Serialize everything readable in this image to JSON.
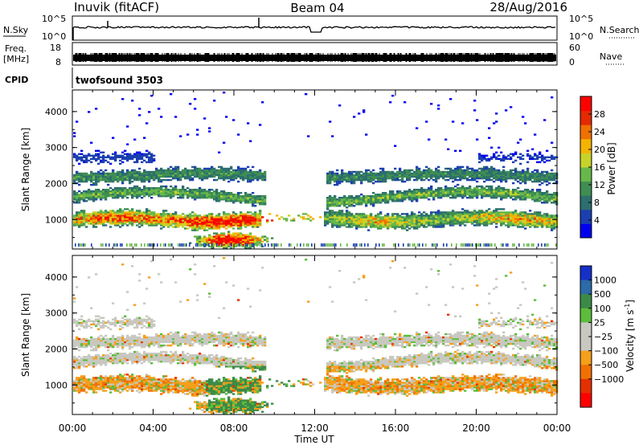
{
  "header": {
    "station": "Inuvik (fitACF)",
    "beam": "Beam 04",
    "date": "28/Aug/2016"
  },
  "status_panels": {
    "nsky": {
      "label": "N.Sky",
      "ticks": [
        "10^5",
        "10^0"
      ]
    },
    "nsearch": {
      "label": "N.Search",
      "ticks": [
        "10^5",
        "10^0"
      ]
    },
    "freq": {
      "label_line1": "Freq.",
      "label_line2": "[MHz]",
      "ticks": [
        "18",
        "8"
      ]
    },
    "nave": {
      "label": "Nave",
      "ticks": [
        "60",
        "0"
      ]
    },
    "cpid": {
      "label": "CPID",
      "value": "twofsound 3503"
    }
  },
  "colors": {
    "power_scale": [
      "#0000ee",
      "#1b3fb0",
      "#2d6e6e",
      "#3e8e52",
      "#67b84a",
      "#c8d32a",
      "#f5b300",
      "#f07000",
      "#e42a00",
      "#ff0000"
    ],
    "velocity_scale": [
      "#1530c8",
      "#2c6aa8",
      "#3c8a48",
      "#5cbc3c",
      "#c8c8c0",
      "#c8c8c0",
      "#f59f1a",
      "#f07000",
      "#e43000",
      "#ff0000"
    ]
  },
  "chart_data": [
    {
      "type": "heatmap",
      "panel": "power",
      "xlabel": "",
      "ylabel": "Slant Range [km]",
      "x_ticks": [
        "00:00",
        "04:00",
        "08:00",
        "12:00",
        "16:00",
        "20:00",
        "00:00"
      ],
      "xlim_hours": [
        0,
        24
      ],
      "ylim_km": [
        180,
        4600
      ],
      "y_ticks": [
        1000,
        2000,
        3000,
        4000
      ],
      "colorbar": {
        "label": "Power [dB]",
        "range": [
          0,
          32
        ],
        "ticks": [
          4,
          8,
          12,
          16,
          20,
          24,
          28
        ]
      },
      "data_gap_hours": [
        11.9,
        12.1
      ]
    },
    {
      "type": "heatmap",
      "panel": "velocity",
      "xlabel": "Time UT",
      "ylabel": "Slant Range [km]",
      "x_ticks": [
        "00:00",
        "04:00",
        "08:00",
        "12:00",
        "16:00",
        "20:00",
        "00:00"
      ],
      "xlim_hours": [
        0,
        24
      ],
      "ylim_km": [
        180,
        4600
      ],
      "y_ticks": [
        1000,
        2000,
        3000,
        4000
      ],
      "colorbar": {
        "label_main": "Velocity [m s",
        "label_sup": "-1",
        "label_end": "]",
        "ticks": [
          "1000",
          "500",
          "100",
          "25",
          "−25",
          "−100",
          "−500",
          "−1000"
        ]
      },
      "data_gap_hours": [
        11.9,
        12.1
      ]
    }
  ]
}
